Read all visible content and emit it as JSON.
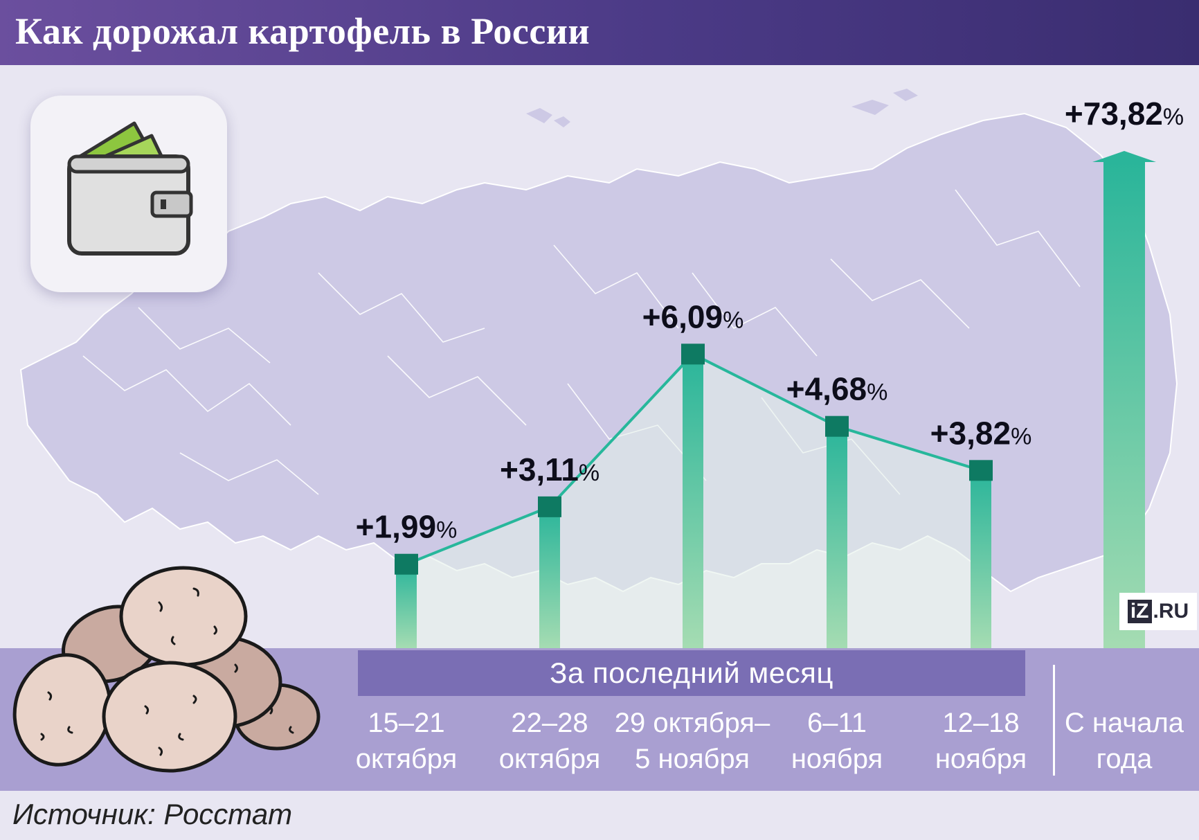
{
  "header": {
    "title": "Как дорожал картофель в России"
  },
  "source": "Источник: Росстат",
  "logo": {
    "iz": "iZ",
    "ru": ".RU"
  },
  "period_label": "За последний месяц",
  "divider_label": "",
  "colors": {
    "header_start": "#6b4f9e",
    "header_end": "#3a2d70",
    "bar_top": "#2ab59a",
    "bar_bottom": "#9fd9b0",
    "bar_cap": "#0e7a62",
    "line": "#27b79b",
    "band": "#a99fd1",
    "period_bar": "#7a6eb4"
  },
  "icons": {
    "wallet": "wallet-icon",
    "potatoes": "potatoes-illustration",
    "map": "russia-map"
  },
  "chart_data": {
    "type": "bar",
    "title": "Как дорожал картофель в России",
    "unit": "%",
    "categories": [
      {
        "line1": "15–21",
        "line2": "октября"
      },
      {
        "line1": "22–28",
        "line2": "октября"
      },
      {
        "line1": "29 октября–",
        "line2": "5 ноября"
      },
      {
        "line1": "6–11",
        "line2": "ноября"
      },
      {
        "line1": "12–18",
        "line2": "ноября"
      },
      {
        "line1": "С начала",
        "line2": "года"
      }
    ],
    "values": [
      1.99,
      3.11,
      6.09,
      4.68,
      3.82,
      73.82
    ],
    "labels": [
      "+1,99",
      "+3,11",
      "+6,09",
      "+4,68",
      "+3,82",
      "+73,82"
    ],
    "group_label": "За последний месяц",
    "weekly_range": [
      0,
      7
    ],
    "ytd_shown_as": "arrow"
  }
}
